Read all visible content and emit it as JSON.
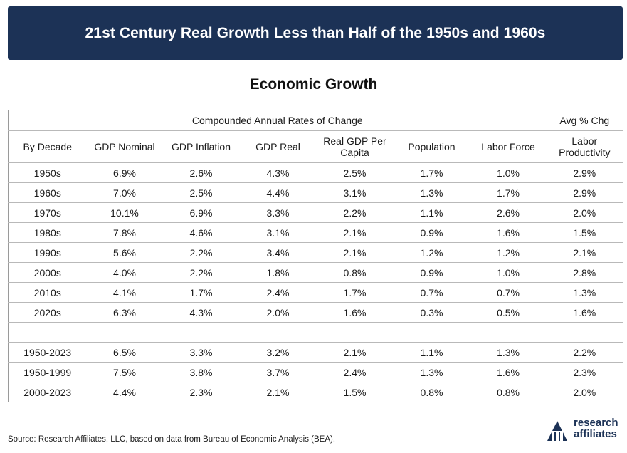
{
  "header": {
    "banner_title": "21st Century Real Growth Less than Half of the 1950s and 1960s",
    "subtitle": "Economic Growth"
  },
  "colors": {
    "banner_bg": "#1c3256",
    "banner_text": "#ffffff",
    "grid_line": "#b9b9b9"
  },
  "chart_data": {
    "type": "table",
    "group_headers": {
      "rates": "Compounded Annual Rates of Change",
      "avg": "Avg % Chg"
    },
    "columns": [
      "By Decade",
      "GDP Nominal",
      "GDP Inflation",
      "GDP Real",
      "Real GDP Per Capita",
      "Population",
      "Labor Force",
      "Labor Productivity"
    ],
    "rows": [
      [
        "1950s",
        "6.9%",
        "2.6%",
        "4.3%",
        "2.5%",
        "1.7%",
        "1.0%",
        "2.9%"
      ],
      [
        "1960s",
        "7.0%",
        "2.5%",
        "4.4%",
        "3.1%",
        "1.3%",
        "1.7%",
        "2.9%"
      ],
      [
        "1970s",
        "10.1%",
        "6.9%",
        "3.3%",
        "2.2%",
        "1.1%",
        "2.6%",
        "2.0%"
      ],
      [
        "1980s",
        "7.8%",
        "4.6%",
        "3.1%",
        "2.1%",
        "0.9%",
        "1.6%",
        "1.5%"
      ],
      [
        "1990s",
        "5.6%",
        "2.2%",
        "3.4%",
        "2.1%",
        "1.2%",
        "1.2%",
        "2.1%"
      ],
      [
        "2000s",
        "4.0%",
        "2.2%",
        "1.8%",
        "0.8%",
        "0.9%",
        "1.0%",
        "2.8%"
      ],
      [
        "2010s",
        "4.1%",
        "1.7%",
        "2.4%",
        "1.7%",
        "0.7%",
        "0.7%",
        "1.3%"
      ],
      [
        "2020s",
        "6.3%",
        "4.3%",
        "2.0%",
        "1.6%",
        "0.3%",
        "0.5%",
        "1.6%"
      ]
    ],
    "summary_rows": [
      [
        "1950-2023",
        "6.5%",
        "3.3%",
        "3.2%",
        "2.1%",
        "1.1%",
        "1.3%",
        "2.2%"
      ],
      [
        "1950-1999",
        "7.5%",
        "3.8%",
        "3.7%",
        "2.4%",
        "1.3%",
        "1.6%",
        "2.3%"
      ],
      [
        "2000-2023",
        "4.4%",
        "2.3%",
        "2.1%",
        "1.5%",
        "0.8%",
        "0.8%",
        "2.0%"
      ]
    ]
  },
  "footer": {
    "source": "Source: Research Affiliates, LLC, based on data from Bureau of Economic Analysis (BEA).",
    "logo_line1": "research",
    "logo_line2": "affiliates",
    "logo_icon": "research-affiliates-logo-icon"
  }
}
